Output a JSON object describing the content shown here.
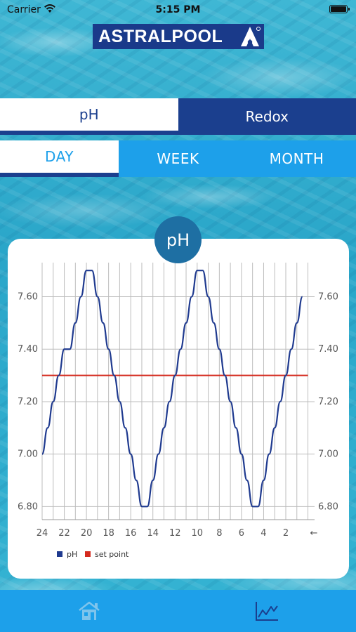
{
  "status_bar": {
    "carrier": "Carrier",
    "time": "5:15 PM"
  },
  "logo": {
    "brand": "ASTRALPOOL"
  },
  "param_tabs": [
    {
      "label": "pH",
      "active": true
    },
    {
      "label": "Redox",
      "active": false
    }
  ],
  "period_tabs": [
    {
      "label": "DAY",
      "active": true
    },
    {
      "label": "WEEK",
      "active": false
    },
    {
      "label": "MONTH",
      "active": false
    }
  ],
  "chart_badge": "pH",
  "chart_data": {
    "type": "line",
    "x_direction": "hours ago, 24 on the left to 0 on the right",
    "x_ticks": [
      "24",
      "22",
      "20",
      "18",
      "16",
      "14",
      "12",
      "10",
      "8",
      "6",
      "4",
      "2"
    ],
    "x_end_marker": "←",
    "ylim": [
      6.75,
      7.73
    ],
    "y_ticks": [
      "6.80",
      "7.00",
      "7.20",
      "7.40",
      "7.60"
    ],
    "grid": true,
    "legend_position": "bottom-left",
    "series": [
      {
        "name": "pH",
        "color": "#1f3a8f",
        "x": [
          24,
          23.5,
          23,
          22.5,
          22,
          21.5,
          21,
          20.5,
          20,
          19.5,
          19,
          18.5,
          18,
          17.5,
          17,
          16.5,
          16,
          15.5,
          15,
          14.5,
          14,
          13.5,
          13,
          12.5,
          12,
          11.5,
          11,
          10.5,
          10,
          9.5,
          9,
          8.5,
          8,
          7.5,
          7,
          6.5,
          6,
          5.5,
          5,
          4.5,
          4,
          3.5,
          3,
          2.5,
          2,
          1.5,
          1,
          0.5
        ],
        "values": [
          7.0,
          7.1,
          7.2,
          7.3,
          7.4,
          7.4,
          7.5,
          7.6,
          7.7,
          7.7,
          7.6,
          7.5,
          7.4,
          7.3,
          7.2,
          7.1,
          7.0,
          6.9,
          6.8,
          6.8,
          6.9,
          7.0,
          7.1,
          7.2,
          7.3,
          7.4,
          7.5,
          7.6,
          7.7,
          7.7,
          7.6,
          7.5,
          7.4,
          7.3,
          7.2,
          7.1,
          7.0,
          6.9,
          6.8,
          6.8,
          6.9,
          7.0,
          7.1,
          7.2,
          7.3,
          7.4,
          7.5,
          7.6
        ]
      },
      {
        "name": "set point",
        "color": "#d42a1e",
        "x": [
          24,
          0
        ],
        "values": [
          7.3,
          7.3
        ]
      }
    ]
  },
  "bottom_nav": {
    "home_icon": "home-icon",
    "chart_icon": "chart-icon"
  }
}
